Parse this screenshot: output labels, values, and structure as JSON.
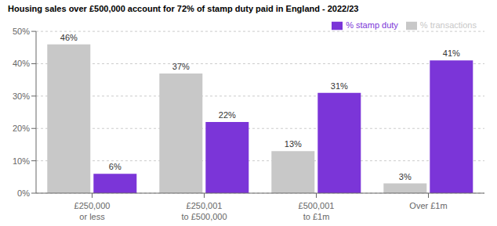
{
  "chart_data": {
    "type": "bar",
    "title": "Housing sales over £500,000 account for 72% of stamp duty paid in England - 2022/23",
    "categories": [
      "£250,000\nor less",
      "£250,001\nto £500,000",
      "£500,001\nto £1m",
      "Over £1m"
    ],
    "series": [
      {
        "name": "% transactions",
        "color": "#c8c8c8",
        "values": [
          46,
          37,
          13,
          3
        ],
        "value_labels": [
          "46%",
          "37%",
          "13%",
          "3%"
        ]
      },
      {
        "name": "% stamp duty",
        "color": "#7b35d8",
        "values": [
          6,
          22,
          31,
          41
        ],
        "value_labels": [
          "6%",
          "22%",
          "31%",
          "41%"
        ]
      }
    ],
    "ylim": [
      0,
      50
    ],
    "yticks": [
      {
        "value": 0,
        "label": "0%"
      },
      {
        "value": 10,
        "label": "10%"
      },
      {
        "value": 20,
        "label": "20%"
      },
      {
        "value": 30,
        "label": "30%"
      },
      {
        "value": 40,
        "label": "40%"
      },
      {
        "value": 50,
        "label": "50%"
      }
    ],
    "grid": true,
    "legend": "upper right",
    "data_labels": true
  }
}
